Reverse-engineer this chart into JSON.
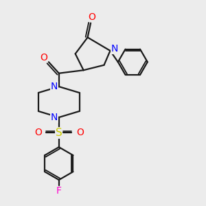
{
  "bg_color": "#ececec",
  "bond_color": "#1a1a1a",
  "N_color": "#0000ff",
  "O_color": "#ff0000",
  "S_color": "#cccc00",
  "F_color": "#ff00cc",
  "line_width": 1.6,
  "figsize": [
    3.0,
    3.0
  ],
  "dpi": 100,
  "xlim": [
    0,
    10
  ],
  "ylim": [
    0,
    10
  ]
}
